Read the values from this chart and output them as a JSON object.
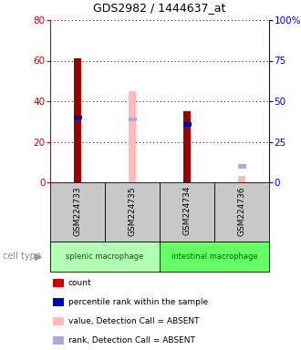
{
  "title": "GDS2982 / 1444637_at",
  "samples": [
    "GSM224733",
    "GSM224735",
    "GSM224734",
    "GSM224736"
  ],
  "bars": {
    "GSM224733": {
      "count_value": 61,
      "rank_value": 41,
      "absent_value": null,
      "absent_rank": null
    },
    "GSM224735": {
      "count_value": null,
      "rank_value": null,
      "absent_value": 45,
      "absent_rank": 40
    },
    "GSM224734": {
      "count_value": 35,
      "rank_value": 37,
      "absent_value": null,
      "absent_rank": null
    },
    "GSM224736": {
      "count_value": null,
      "rank_value": null,
      "absent_value": 3,
      "absent_rank": 11
    }
  },
  "cell_types": [
    {
      "label": "splenic macrophage",
      "n": 2,
      "color": "#b3ffb3"
    },
    {
      "label": "intestinal macrophage",
      "n": 2,
      "color": "#66ff66"
    }
  ],
  "ylim_left": [
    0,
    80
  ],
  "ylim_right": [
    0,
    100
  ],
  "yticks_left": [
    0,
    20,
    40,
    60,
    80
  ],
  "yticks_right": [
    0,
    25,
    50,
    75,
    100
  ],
  "ytick_labels_right": [
    "0",
    "25",
    "50",
    "75",
    "100%"
  ],
  "left_axis_color": "#cc0000",
  "right_axis_color": "#0000cc",
  "count_color": "#990000",
  "rank_color": "#0000bb",
  "absent_value_color": "#ffbbbb",
  "absent_rank_color": "#aaaadd",
  "grid_color": "#000000",
  "legend_items": [
    {
      "label": "count",
      "color": "#cc0000"
    },
    {
      "label": "percentile rank within the sample",
      "color": "#0000cc"
    },
    {
      "label": "value, Detection Call = ABSENT",
      "color": "#ffbbbb"
    },
    {
      "label": "rank, Detection Call = ABSENT",
      "color": "#aaaadd"
    }
  ],
  "cell_type_label": "cell type",
  "sample_box_color": "#c8c8c8",
  "fig_bg": "#ffffff"
}
